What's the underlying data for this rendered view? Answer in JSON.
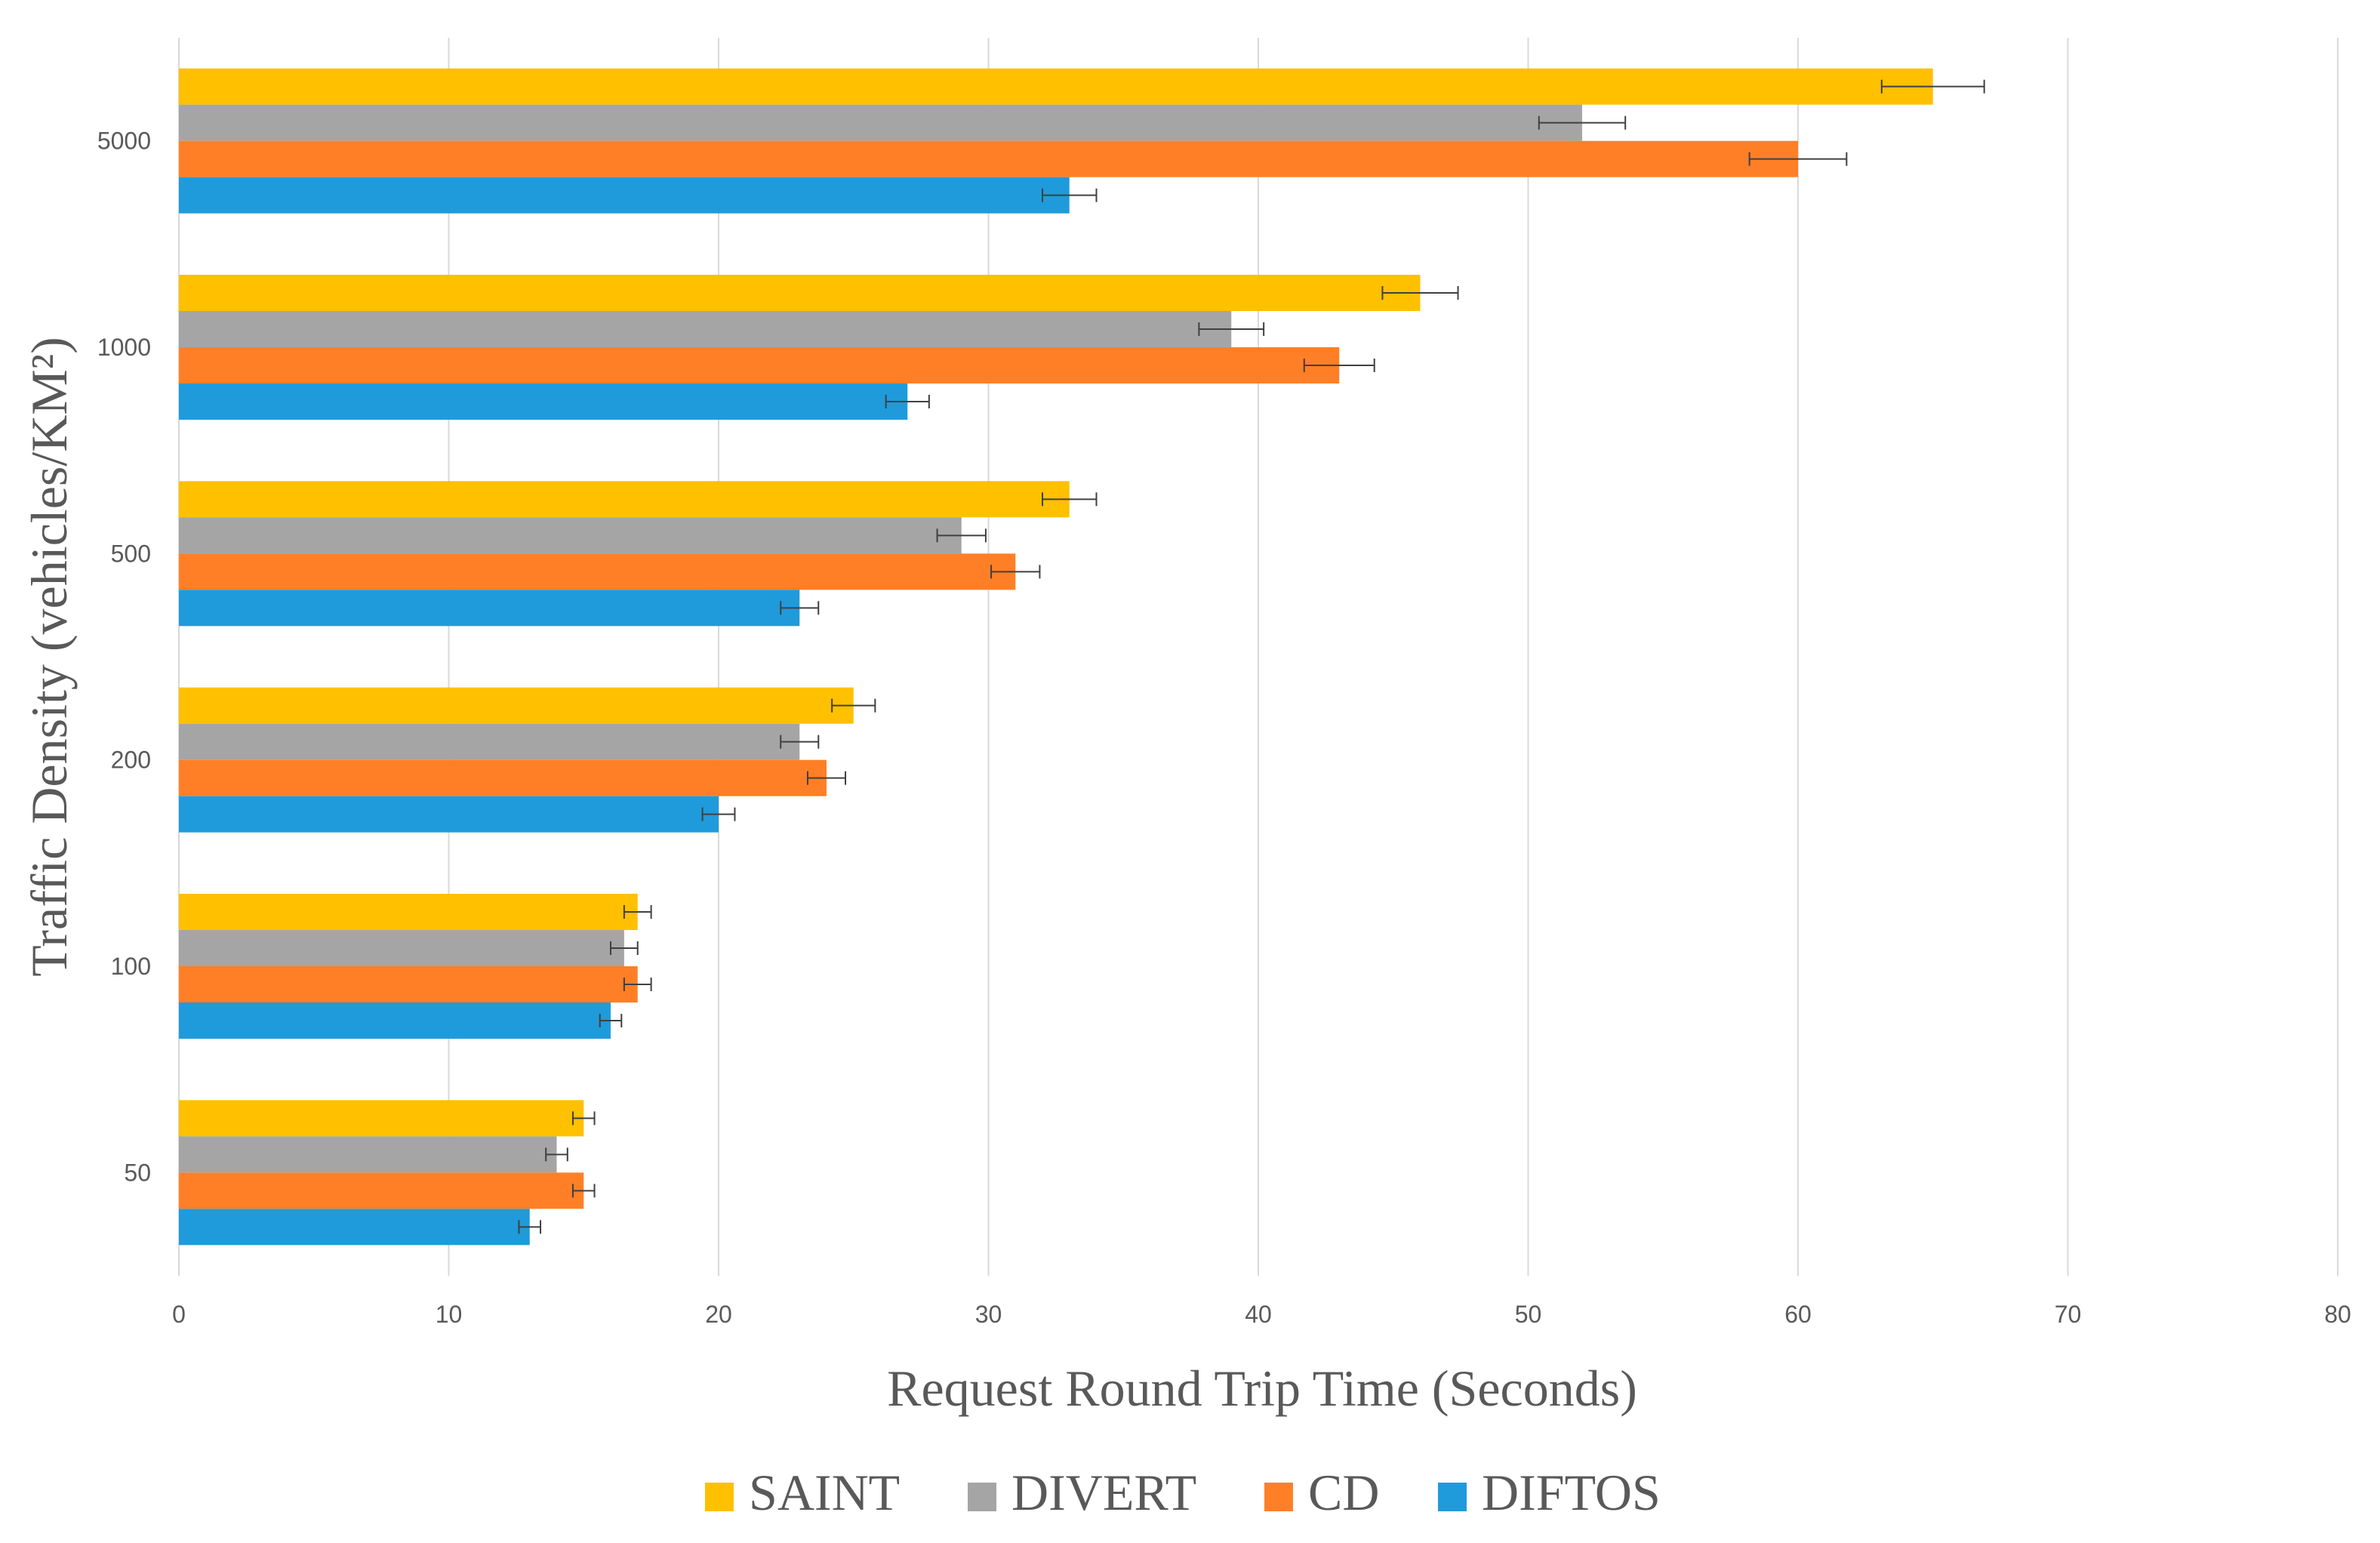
{
  "chart_data": {
    "type": "bar",
    "orientation": "horizontal",
    "title": "",
    "xlabel": "Request Round Trip Time (Seconds)",
    "ylabel": "Traffic Density  (vehicles/KM²)",
    "xlim": [
      0,
      80
    ],
    "xticks": [
      "0",
      "10",
      "20",
      "30",
      "40",
      "50",
      "60",
      "70",
      "80"
    ],
    "categories": [
      "5000",
      "1000",
      "500",
      "200",
      "100",
      "50"
    ],
    "grid": "vertical",
    "legend_position": "bottom",
    "series": [
      {
        "name": "SAINT",
        "color": "#FFC000",
        "values": [
          65,
          46,
          33,
          25,
          17,
          15
        ],
        "errors": [
          1.9,
          1.4,
          1.0,
          0.8,
          0.5,
          0.4
        ]
      },
      {
        "name": "DIVERT",
        "color": "#A5A5A5",
        "values": [
          52,
          39,
          29,
          23,
          16.5,
          14
        ],
        "errors": [
          1.6,
          1.2,
          0.9,
          0.7,
          0.5,
          0.4
        ]
      },
      {
        "name": "CD",
        "color": "#FF7F27",
        "values": [
          60,
          43,
          31,
          24,
          17,
          15
        ],
        "errors": [
          1.8,
          1.3,
          0.9,
          0.7,
          0.5,
          0.4
        ]
      },
      {
        "name": "DIFTOS",
        "color": "#1F9BDB",
        "values": [
          33,
          27,
          23,
          20,
          16,
          13
        ],
        "errors": [
          1.0,
          0.8,
          0.7,
          0.6,
          0.4,
          0.4
        ]
      }
    ]
  }
}
